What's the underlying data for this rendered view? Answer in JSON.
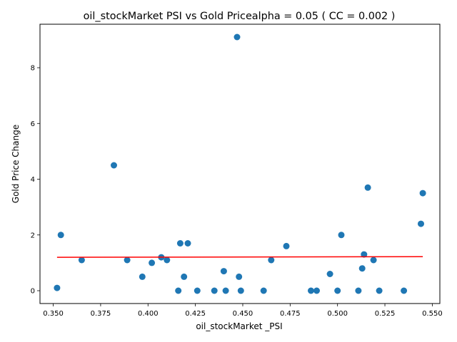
{
  "chart_data": {
    "type": "scatter",
    "title": "oil_stockMarket  PSI vs Gold Pricealpha = 0.05 ( CC = 0.002 )",
    "xlabel": "oil_stockMarket _PSI",
    "ylabel": "Gold Price Change",
    "xlim": [
      0.343,
      0.554
    ],
    "ylim": [
      -0.46,
      9.56
    ],
    "xticks": [
      0.35,
      0.375,
      0.4,
      0.425,
      0.45,
      0.475,
      0.5,
      0.525,
      0.55
    ],
    "xtick_labels": [
      "0.350",
      "0.375",
      "0.400",
      "0.425",
      "0.450",
      "0.475",
      "0.500",
      "0.525",
      "0.550"
    ],
    "yticks": [
      0,
      2,
      4,
      6,
      8
    ],
    "ytick_labels": [
      "0",
      "2",
      "4",
      "6",
      "8"
    ],
    "grid": false,
    "series": [
      {
        "kind": "points",
        "color": "#1f77b4",
        "points": [
          {
            "x": 0.352,
            "y": 0.1
          },
          {
            "x": 0.354,
            "y": 2.0
          },
          {
            "x": 0.365,
            "y": 1.1
          },
          {
            "x": 0.382,
            "y": 4.5
          },
          {
            "x": 0.389,
            "y": 1.1
          },
          {
            "x": 0.397,
            "y": 0.5
          },
          {
            "x": 0.402,
            "y": 1.0
          },
          {
            "x": 0.407,
            "y": 1.2
          },
          {
            "x": 0.41,
            "y": 1.1
          },
          {
            "x": 0.416,
            "y": 0.0
          },
          {
            "x": 0.417,
            "y": 1.7
          },
          {
            "x": 0.419,
            "y": 0.5
          },
          {
            "x": 0.421,
            "y": 1.7
          },
          {
            "x": 0.426,
            "y": 0.0
          },
          {
            "x": 0.435,
            "y": 0.0
          },
          {
            "x": 0.44,
            "y": 0.7
          },
          {
            "x": 0.441,
            "y": 0.0
          },
          {
            "x": 0.447,
            "y": 9.1
          },
          {
            "x": 0.448,
            "y": 0.5
          },
          {
            "x": 0.449,
            "y": 0.0
          },
          {
            "x": 0.461,
            "y": 0.0
          },
          {
            "x": 0.465,
            "y": 1.1
          },
          {
            "x": 0.473,
            "y": 1.6
          },
          {
            "x": 0.486,
            "y": 0.0
          },
          {
            "x": 0.489,
            "y": 0.0
          },
          {
            "x": 0.496,
            "y": 0.6
          },
          {
            "x": 0.5,
            "y": 0.0
          },
          {
            "x": 0.502,
            "y": 2.0
          },
          {
            "x": 0.511,
            "y": 0.0
          },
          {
            "x": 0.513,
            "y": 0.8
          },
          {
            "x": 0.514,
            "y": 1.3
          },
          {
            "x": 0.516,
            "y": 3.7
          },
          {
            "x": 0.519,
            "y": 1.1
          },
          {
            "x": 0.522,
            "y": 0.0
          },
          {
            "x": 0.535,
            "y": 0.0
          },
          {
            "x": 0.544,
            "y": 2.4
          },
          {
            "x": 0.545,
            "y": 3.5
          }
        ]
      },
      {
        "kind": "fit-line",
        "color": "#ff0000",
        "points": [
          {
            "x": 0.352,
            "y": 1.2
          },
          {
            "x": 0.545,
            "y": 1.22
          }
        ]
      }
    ]
  }
}
